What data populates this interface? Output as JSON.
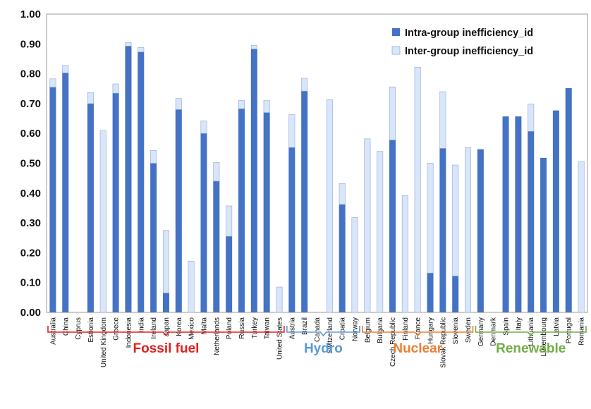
{
  "chart_data": {
    "type": "bar",
    "stacked": true,
    "ylim": [
      0,
      1.0
    ],
    "yticks": [
      "0.00",
      "0.10",
      "0.20",
      "0.30",
      "0.40",
      "0.50",
      "0.60",
      "0.70",
      "0.80",
      "0.90",
      "1.00"
    ],
    "legend_position": "top-right",
    "grid": false,
    "categories": [
      "Australia",
      "China",
      "Cyprus",
      "Estionia",
      "United Kingdom",
      "Greece",
      "Indonesia",
      "India",
      "Ireland",
      "Japan",
      "Korea",
      "Mexico",
      "Malta",
      "Netherlands",
      "Poland",
      "Russia",
      "Turkey",
      "Taiwan",
      "United States",
      "Austria",
      "Brazil",
      "Canada",
      "Switzerland",
      "Croatia",
      "Norway",
      "Belgium",
      "Bulgaria",
      "Czech Republic",
      "Finland",
      "France",
      "Hungary",
      "Slovak Republic",
      "Slovenia",
      "Sweden",
      "Germany",
      "Denmark",
      "Spain",
      "Italy",
      "Lithuania",
      "Luxembourg",
      "Latvia",
      "Portugal",
      "Romania"
    ],
    "series": [
      {
        "name": "Intra-group inefficiency_id",
        "color": "#4472C4",
        "values": [
          0.755,
          0.803,
          0,
          0.7,
          0,
          0.735,
          0.893,
          0.873,
          0.5,
          0.065,
          0.68,
          0,
          0.6,
          0.44,
          0.255,
          0.683,
          0.883,
          0.67,
          0,
          0.553,
          0.742,
          0,
          0,
          0.362,
          0,
          0,
          0,
          0.578,
          0,
          0,
          0.132,
          0.55,
          0.122,
          0,
          0.547,
          0,
          0.657,
          0.657,
          0.607,
          0.518,
          0.677,
          0.752,
          0
        ]
      },
      {
        "name": "Inter-group inefficiency_id",
        "color": "#D9E5F8",
        "values": [
          0.028,
          0.025,
          0,
          0.037,
          0.61,
          0.031,
          0.012,
          0.015,
          0.043,
          0.21,
          0.037,
          0.172,
          0.042,
          0.063,
          0.102,
          0.028,
          0.012,
          0.04,
          0.085,
          0.11,
          0.043,
          0,
          0.713,
          0.07,
          0.318,
          0.582,
          0.54,
          0.178,
          0.392,
          0.822,
          0.368,
          0.19,
          0.372,
          0.552,
          0,
          0,
          0,
          0,
          0.092,
          0,
          0,
          0,
          0.505
        ]
      }
    ],
    "groups": [
      {
        "label": "Fossil fuel",
        "color": "#E0201F",
        "from": 0,
        "to": 18
      },
      {
        "label": "Hydro",
        "color": "#5B9BD5",
        "from": 19,
        "to": 24
      },
      {
        "label": "Nuclear",
        "color": "#ED7D31",
        "from": 25,
        "to": 33
      },
      {
        "label": "Renewable",
        "color": "#70AD47",
        "from": 34,
        "to": 42
      }
    ]
  }
}
